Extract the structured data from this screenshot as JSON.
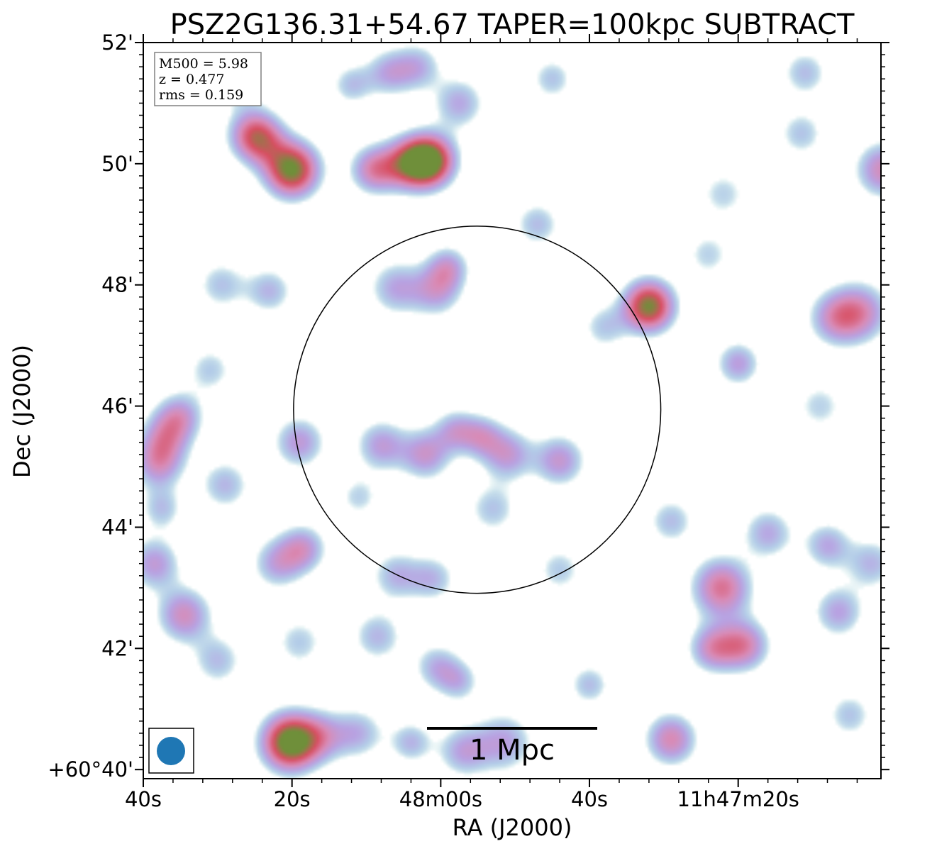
{
  "chart_data": {
    "type": "heatmap",
    "title": "PSZ2G136.31+54.67 TAPER=100kpc SUBTRACT",
    "xlabel": "RA (J2000)",
    "ylabel": "Dec (J2000)",
    "x_ticks": [
      {
        "label": "40s",
        "ra_sec": 40
      },
      {
        "label": "20s",
        "ra_sec": 20
      },
      {
        "label": "48m00s",
        "ra_sec": 0
      },
      {
        "label": "40s",
        "ra_sec": -20
      },
      {
        "label": "11h47m20s",
        "ra_sec": -40
      }
    ],
    "y_ticks": [
      {
        "label": "+60°40'",
        "dec_arcmin": 40
      },
      {
        "label": "42'",
        "dec_arcmin": 42
      },
      {
        "label": "44'",
        "dec_arcmin": 44
      },
      {
        "label": "46'",
        "dec_arcmin": 46
      },
      {
        "label": "48'",
        "dec_arcmin": 48
      },
      {
        "label": "50'",
        "dec_arcmin": 50
      },
      {
        "label": "52'",
        "dec_arcmin": 52
      }
    ],
    "xlim_ra_sec": [
      40,
      -59.2
    ],
    "ylim_dec_arcmin": [
      39.85,
      52.0
    ],
    "info_box": [
      "M500 = 5.98",
      "z = 0.477",
      "rms = 0.159"
    ],
    "scale_bar_label": "1 Mpc",
    "circle": {
      "center_ra_sec": -4.9,
      "center_dec_arcmin": 45.94,
      "radius_arcmin": 3.03
    },
    "colormap": [
      "#d8eeee",
      "#b3cce8",
      "#b8a2e2",
      "#d98bb6",
      "#d84f62",
      "#6f8f3a"
    ],
    "colorbar_shown": false,
    "grid": false,
    "sources": [
      {
        "ra": 20.0,
        "dec": 49.9,
        "peak": 5.0,
        "s": 0.32
      },
      {
        "ra": 1.5,
        "dec": 50.05,
        "peak": 5.2,
        "s": 0.3
      },
      {
        "ra": 4.5,
        "dec": 50.0,
        "peak": 3.0,
        "s": 0.3
      },
      {
        "ra": 9.0,
        "dec": 49.9,
        "peak": 2.8,
        "s": 0.28
      },
      {
        "ra": 24.2,
        "dec": 50.4,
        "peak": 2.6,
        "s": 0.3
      },
      {
        "ra": -28.0,
        "dec": 47.65,
        "peak": 4.9,
        "s": 0.3
      },
      {
        "ra": -37.8,
        "dec": 43.0,
        "peak": 3.3,
        "s": 0.35
      },
      {
        "ra": -40.8,
        "dec": 42.05,
        "peak": 2.9,
        "s": 0.3
      },
      {
        "ra": -36.5,
        "dec": 42.0,
        "peak": 2.5,
        "s": 0.28
      },
      {
        "ra": 20.3,
        "dec": 40.45,
        "peak": 5.4,
        "s": 0.33
      },
      {
        "ra": -31.0,
        "dec": 40.5,
        "peak": 2.9,
        "s": 0.3
      },
      {
        "ra": 34.5,
        "dec": 42.55,
        "peak": 2.7,
        "s": 0.32
      },
      {
        "ra": -56.5,
        "dec": 47.55,
        "peak": 2.5,
        "s": 0.35
      },
      {
        "ra": -53.0,
        "dec": 47.45,
        "peak": 2.2,
        "s": 0.32
      },
      {
        "ra": -59.5,
        "dec": 49.9,
        "peak": 2.8,
        "s": 0.32
      },
      {
        "ra": -9.0,
        "dec": 45.2,
        "peak": 2.3,
        "s": 0.3
      },
      {
        "ra": -5.5,
        "dec": 45.5,
        "peak": 2.0,
        "s": 0.25
      },
      {
        "ra": 2.0,
        "dec": 45.2,
        "peak": 2.4,
        "s": 0.3
      },
      {
        "ra": -16.0,
        "dec": 45.1,
        "peak": 2.4,
        "s": 0.3
      },
      {
        "ra": 38.0,
        "dec": 45.05,
        "peak": 2.4,
        "s": 0.3
      },
      {
        "ra": 37.0,
        "dec": 45.5,
        "peak": 2.1,
        "s": 0.3
      },
      {
        "ra": 35.0,
        "dec": 45.85,
        "peak": 2.1,
        "s": 0.28
      },
      {
        "ra": 38.5,
        "dec": 43.4,
        "peak": 2.3,
        "s": 0.3
      },
      {
        "ra": 22.0,
        "dec": 43.4,
        "peak": 2.0,
        "s": 0.3
      },
      {
        "ra": 18.5,
        "dec": 43.65,
        "peak": 2.3,
        "s": 0.28
      },
      {
        "ra": 19.0,
        "dec": 45.4,
        "peak": 2.3,
        "s": 0.3
      },
      {
        "ra": 8.0,
        "dec": 45.35,
        "peak": 2.2,
        "s": 0.3
      },
      {
        "ra": 0.5,
        "dec": 47.9,
        "peak": 2.1,
        "s": 0.3
      },
      {
        "ra": 6.0,
        "dec": 47.95,
        "peak": 2.0,
        "s": 0.32
      },
      {
        "ra": -1.0,
        "dec": 48.3,
        "peak": 2.0,
        "s": 0.25
      },
      {
        "ra": -2.0,
        "dec": 45.6,
        "peak": 1.9,
        "s": 0.25
      },
      {
        "ra": -40.0,
        "dec": 46.7,
        "peak": 2.2,
        "s": 0.26
      },
      {
        "ra": -53.5,
        "dec": 42.6,
        "peak": 2.1,
        "s": 0.3
      },
      {
        "ra": -44.0,
        "dec": 43.9,
        "peak": 2.0,
        "s": 0.3
      },
      {
        "ra": -52.0,
        "dec": 43.7,
        "peak": 2.0,
        "s": 0.28
      },
      {
        "ra": -8.5,
        "dec": 40.45,
        "peak": 2.1,
        "s": 0.35
      },
      {
        "ra": -3.0,
        "dec": 40.3,
        "peak": 2.0,
        "s": 0.3
      },
      {
        "ra": 11.0,
        "dec": 40.6,
        "peak": 1.8,
        "s": 0.3
      },
      {
        "ra": 16.0,
        "dec": 40.55,
        "peak": 1.9,
        "s": 0.3
      },
      {
        "ra": 4.0,
        "dec": 40.45,
        "peak": 1.8,
        "s": 0.25
      },
      {
        "ra": 25.5,
        "dec": 50.5,
        "peak": 1.8,
        "s": 0.3
      },
      {
        "ra": -2.5,
        "dec": 51.0,
        "peak": 2.0,
        "s": 0.3
      },
      {
        "ra": 7.0,
        "dec": 51.5,
        "peak": 1.9,
        "s": 0.28
      },
      {
        "ra": 3.0,
        "dec": 51.6,
        "peak": 1.8,
        "s": 0.28
      },
      {
        "ra": 12.0,
        "dec": 51.3,
        "peak": 1.6,
        "s": 0.25
      },
      {
        "ra": -31.0,
        "dec": 44.1,
        "peak": 1.7,
        "s": 0.28
      },
      {
        "ra": -20.0,
        "dec": 41.4,
        "peak": 1.7,
        "s": 0.25
      },
      {
        "ra": 30.0,
        "dec": 41.8,
        "peak": 1.7,
        "s": 0.3
      },
      {
        "ra": 37.5,
        "dec": 44.3,
        "peak": 1.6,
        "s": 0.25
      },
      {
        "ra": 29.0,
        "dec": 44.7,
        "peak": 1.8,
        "s": 0.3
      },
      {
        "ra": 6.0,
        "dec": 43.2,
        "peak": 1.8,
        "s": 0.3
      },
      {
        "ra": 1.0,
        "dec": 43.15,
        "peak": 1.7,
        "s": 0.28
      },
      {
        "ra": 8.5,
        "dec": 42.2,
        "peak": 1.8,
        "s": 0.3
      },
      {
        "ra": 0.5,
        "dec": 41.7,
        "peak": 1.8,
        "s": 0.28
      },
      {
        "ra": -2.5,
        "dec": 41.45,
        "peak": 1.6,
        "s": 0.25
      },
      {
        "ra": 29.5,
        "dec": 48.0,
        "peak": 1.6,
        "s": 0.3
      },
      {
        "ra": 23.0,
        "dec": 47.9,
        "peak": 1.8,
        "s": 0.28
      },
      {
        "ra": -13.0,
        "dec": 49.0,
        "peak": 1.7,
        "s": 0.28
      },
      {
        "ra": -58.0,
        "dec": 43.4,
        "peak": 1.8,
        "s": 0.3
      },
      {
        "ra": -55.0,
        "dec": 40.9,
        "peak": 1.6,
        "s": 0.28
      },
      {
        "ra": -49.0,
        "dec": 51.5,
        "peak": 1.7,
        "s": 0.28
      },
      {
        "ra": -48.5,
        "dec": 50.5,
        "peak": 1.6,
        "s": 0.28
      },
      {
        "ra": -15.0,
        "dec": 51.4,
        "peak": 1.6,
        "s": 0.26
      },
      {
        "ra": -38.0,
        "dec": 49.5,
        "peak": 1.4,
        "s": 0.3
      },
      {
        "ra": 31.0,
        "dec": 46.6,
        "peak": 1.5,
        "s": 0.28
      },
      {
        "ra": 19.0,
        "dec": 42.1,
        "peak": 1.5,
        "s": 0.3
      },
      {
        "ra": -7.0,
        "dec": 44.3,
        "peak": 1.6,
        "s": 0.3
      },
      {
        "ra": -16.0,
        "dec": 43.3,
        "peak": 1.5,
        "s": 0.28
      },
      {
        "ra": 11.0,
        "dec": 44.5,
        "peak": 1.4,
        "s": 0.25
      },
      {
        "ra": -36.0,
        "dec": 48.5,
        "peak": 1.4,
        "s": 0.28
      },
      {
        "ra": -51.0,
        "dec": 46.0,
        "peak": 1.4,
        "s": 0.3
      },
      {
        "ra": -22.0,
        "dec": 47.3,
        "peak": 1.5,
        "s": 0.28
      },
      {
        "ra": 27.0,
        "dec": 51.3,
        "peak": 1.4,
        "s": 0.28
      }
    ]
  }
}
